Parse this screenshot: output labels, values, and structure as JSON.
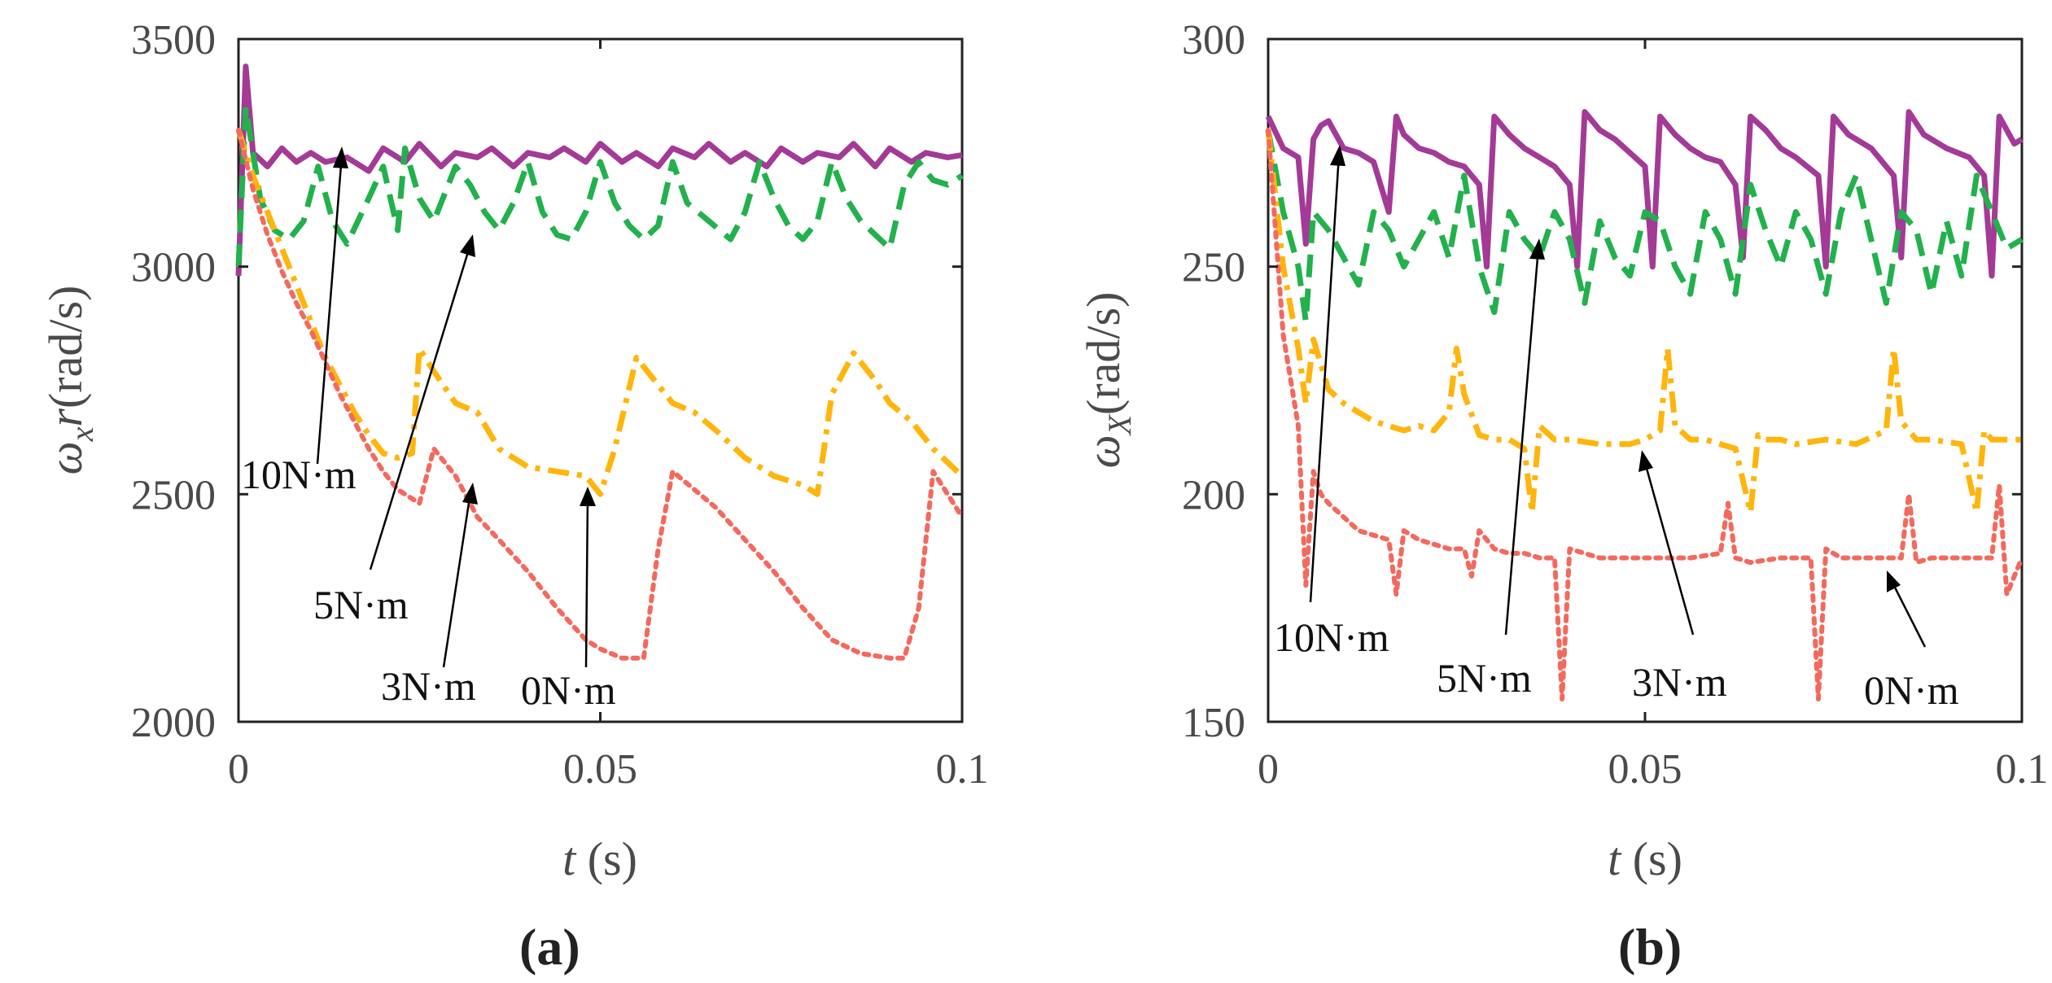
{
  "chart_data": [
    {
      "panel": "(a)",
      "type": "line",
      "title": "",
      "xlabel_var": "t",
      "xlabel_unit": " (s)",
      "ylabel_var": "ω",
      "ylabel_sub": "x",
      "ylabel_var2": "r",
      "ylabel_unit": "(rad/s)",
      "xlim": [
        0,
        0.1
      ],
      "ylim": [
        2000,
        3500
      ],
      "xticks": [
        0,
        0.05,
        0.1
      ],
      "xtick_labels": [
        "0",
        "0.05",
        "0.1"
      ],
      "yticks": [
        2000,
        2500,
        3000,
        3500
      ],
      "ytick_labels": [
        "2000",
        "2500",
        "3000",
        "3500"
      ],
      "grid": false,
      "series": [
        {
          "name": "10N·m",
          "color": "#a33a96",
          "dash": "solid",
          "x": [
            0,
            0.001,
            0.002,
            0.004,
            0.006,
            0.008,
            0.01,
            0.012,
            0.015,
            0.018,
            0.02,
            0.023,
            0.025,
            0.028,
            0.03,
            0.033,
            0.035,
            0.038,
            0.04,
            0.043,
            0.045,
            0.048,
            0.05,
            0.053,
            0.055,
            0.058,
            0.06,
            0.063,
            0.065,
            0.068,
            0.07,
            0.073,
            0.075,
            0.078,
            0.08,
            0.083,
            0.085,
            0.088,
            0.09,
            0.093,
            0.095,
            0.098,
            0.1
          ],
          "y": [
            2980,
            3440,
            3250,
            3220,
            3260,
            3230,
            3250,
            3230,
            3240,
            3210,
            3260,
            3230,
            3270,
            3220,
            3250,
            3240,
            3260,
            3220,
            3250,
            3240,
            3260,
            3230,
            3270,
            3230,
            3250,
            3220,
            3260,
            3240,
            3270,
            3230,
            3250,
            3220,
            3260,
            3230,
            3250,
            3240,
            3270,
            3220,
            3260,
            3230,
            3250,
            3240,
            3245
          ]
        },
        {
          "name": "5N·m",
          "color": "#22b14c",
          "dash": "dashed",
          "x": [
            0,
            0.001,
            0.003,
            0.005,
            0.007,
            0.009,
            0.011,
            0.013,
            0.015,
            0.018,
            0.02,
            0.022,
            0.023,
            0.025,
            0.027,
            0.03,
            0.032,
            0.034,
            0.036,
            0.038,
            0.04,
            0.042,
            0.044,
            0.046,
            0.048,
            0.05,
            0.052,
            0.054,
            0.056,
            0.058,
            0.06,
            0.062,
            0.065,
            0.068,
            0.07,
            0.072,
            0.074,
            0.076,
            0.078,
            0.08,
            0.082,
            0.084,
            0.086,
            0.088,
            0.09,
            0.092,
            0.094,
            0.096,
            0.098,
            0.1
          ],
          "y": [
            3000,
            3350,
            3150,
            3080,
            3060,
            3100,
            3220,
            3100,
            3050,
            3150,
            3220,
            3080,
            3260,
            3150,
            3100,
            3220,
            3180,
            3120,
            3080,
            3140,
            3230,
            3120,
            3070,
            3060,
            3120,
            3230,
            3140,
            3090,
            3060,
            3090,
            3230,
            3140,
            3100,
            3060,
            3120,
            3230,
            3150,
            3090,
            3060,
            3100,
            3230,
            3150,
            3100,
            3070,
            3040,
            3180,
            3230,
            3190,
            3180,
            3200
          ]
        },
        {
          "name": "3N·m",
          "color": "#ffb50c",
          "dash": "dashdot",
          "x": [
            0,
            0.002,
            0.004,
            0.006,
            0.008,
            0.01,
            0.012,
            0.014,
            0.016,
            0.018,
            0.02,
            0.022,
            0.024,
            0.025,
            0.027,
            0.03,
            0.033,
            0.036,
            0.04,
            0.044,
            0.048,
            0.05,
            0.052,
            0.055,
            0.058,
            0.06,
            0.063,
            0.066,
            0.07,
            0.074,
            0.078,
            0.08,
            0.082,
            0.085,
            0.088,
            0.09,
            0.093,
            0.096,
            0.1
          ],
          "y": [
            3300,
            3200,
            3120,
            3040,
            2960,
            2880,
            2800,
            2740,
            2680,
            2630,
            2590,
            2580,
            2590,
            2820,
            2770,
            2700,
            2680,
            2600,
            2560,
            2550,
            2540,
            2500,
            2600,
            2800,
            2740,
            2700,
            2680,
            2640,
            2580,
            2540,
            2520,
            2500,
            2720,
            2810,
            2750,
            2700,
            2660,
            2600,
            2540
          ]
        },
        {
          "name": "0N·m",
          "color": "#f4695d",
          "dash": "dotted",
          "x": [
            0,
            0.002,
            0.004,
            0.006,
            0.008,
            0.01,
            0.012,
            0.014,
            0.016,
            0.018,
            0.02,
            0.022,
            0.024,
            0.025,
            0.027,
            0.03,
            0.033,
            0.036,
            0.04,
            0.044,
            0.048,
            0.05,
            0.053,
            0.056,
            0.058,
            0.06,
            0.063,
            0.066,
            0.07,
            0.074,
            0.078,
            0.082,
            0.086,
            0.09,
            0.092,
            0.094,
            0.096,
            0.098,
            0.1
          ],
          "y": [
            3300,
            3170,
            3070,
            2990,
            2920,
            2860,
            2790,
            2720,
            2660,
            2600,
            2550,
            2510,
            2490,
            2480,
            2600,
            2540,
            2450,
            2400,
            2330,
            2250,
            2180,
            2160,
            2140,
            2140,
            2380,
            2550,
            2510,
            2470,
            2400,
            2330,
            2250,
            2180,
            2150,
            2140,
            2140,
            2250,
            2550,
            2500,
            2450
          ]
        }
      ],
      "annotations": [
        "10N·m",
        "5N·m",
        "3N·m",
        "0N·m"
      ]
    },
    {
      "panel": "(b)",
      "type": "line",
      "title": "",
      "xlabel_var": "t",
      "xlabel_unit": " (s)",
      "ylabel_var": "ω",
      "ylabel_sub": "X",
      "ylabel_var2": "",
      "ylabel_unit": "(rad/s)",
      "xlim": [
        0,
        0.1
      ],
      "ylim": [
        150,
        300
      ],
      "xticks": [
        0,
        0.05,
        0.1
      ],
      "xtick_labels": [
        "0",
        "0.05",
        "0.1"
      ],
      "yticks": [
        150,
        200,
        250,
        300
      ],
      "ytick_labels": [
        "150",
        "200",
        "250",
        "300"
      ],
      "grid": false,
      "series": [
        {
          "name": "10N·m",
          "color": "#a33a96",
          "dash": "solid",
          "x": [
            0,
            0.002,
            0.004,
            0.005,
            0.006,
            0.007,
            0.008,
            0.01,
            0.012,
            0.014,
            0.016,
            0.017,
            0.018,
            0.02,
            0.022,
            0.024,
            0.026,
            0.028,
            0.029,
            0.03,
            0.032,
            0.034,
            0.036,
            0.038,
            0.04,
            0.041,
            0.042,
            0.044,
            0.046,
            0.048,
            0.05,
            0.051,
            0.052,
            0.054,
            0.056,
            0.058,
            0.06,
            0.062,
            0.063,
            0.064,
            0.066,
            0.068,
            0.07,
            0.073,
            0.074,
            0.075,
            0.077,
            0.08,
            0.083,
            0.084,
            0.085,
            0.087,
            0.09,
            0.093,
            0.095,
            0.096,
            0.097,
            0.099,
            0.1
          ],
          "y": [
            283,
            276,
            274,
            255,
            278,
            281,
            282,
            276,
            275,
            273,
            262,
            283,
            279,
            276,
            275,
            273,
            272,
            268,
            250,
            283,
            279,
            276,
            274,
            272,
            268,
            250,
            284,
            280,
            278,
            275,
            272,
            250,
            283,
            279,
            276,
            274,
            273,
            268,
            252,
            283,
            280,
            276,
            274,
            270,
            250,
            283,
            279,
            276,
            270,
            252,
            284,
            279,
            276,
            274,
            270,
            248,
            283,
            277,
            278
          ]
        },
        {
          "name": "5N·m",
          "color": "#22b14c",
          "dash": "dashed",
          "x": [
            0,
            0.002,
            0.004,
            0.005,
            0.006,
            0.008,
            0.01,
            0.012,
            0.014,
            0.016,
            0.018,
            0.02,
            0.022,
            0.024,
            0.026,
            0.028,
            0.03,
            0.032,
            0.034,
            0.036,
            0.038,
            0.04,
            0.042,
            0.044,
            0.046,
            0.048,
            0.05,
            0.052,
            0.054,
            0.056,
            0.058,
            0.06,
            0.062,
            0.064,
            0.066,
            0.068,
            0.07,
            0.072,
            0.074,
            0.076,
            0.078,
            0.08,
            0.082,
            0.084,
            0.086,
            0.088,
            0.09,
            0.092,
            0.094,
            0.096,
            0.098,
            0.1
          ],
          "y": [
            280,
            262,
            250,
            238,
            262,
            258,
            252,
            246,
            262,
            258,
            250,
            256,
            262,
            252,
            270,
            250,
            240,
            262,
            256,
            252,
            262,
            256,
            242,
            260,
            252,
            248,
            262,
            260,
            250,
            244,
            262,
            256,
            244,
            268,
            258,
            250,
            262,
            256,
            244,
            262,
            270,
            256,
            242,
            262,
            258,
            244,
            260,
            248,
            270,
            262,
            254,
            256
          ]
        },
        {
          "name": "3N·m",
          "color": "#ffb50c",
          "dash": "dashdot",
          "x": [
            0,
            0.002,
            0.004,
            0.005,
            0.006,
            0.008,
            0.01,
            0.012,
            0.014,
            0.016,
            0.018,
            0.02,
            0.022,
            0.024,
            0.025,
            0.026,
            0.028,
            0.03,
            0.032,
            0.034,
            0.035,
            0.036,
            0.038,
            0.04,
            0.044,
            0.048,
            0.05,
            0.052,
            0.053,
            0.054,
            0.056,
            0.058,
            0.062,
            0.064,
            0.065,
            0.066,
            0.068,
            0.07,
            0.074,
            0.078,
            0.082,
            0.083,
            0.084,
            0.086,
            0.088,
            0.092,
            0.094,
            0.095,
            0.096,
            0.098,
            0.1
          ],
          "y": [
            280,
            250,
            232,
            220,
            234,
            223,
            220,
            218,
            216,
            215,
            214,
            215,
            214,
            218,
            232,
            222,
            213,
            212,
            212,
            210,
            196,
            215,
            212,
            212,
            211,
            211,
            212,
            214,
            232,
            215,
            212,
            212,
            210,
            196,
            213,
            212,
            212,
            211,
            212,
            211,
            214,
            232,
            216,
            212,
            212,
            211,
            196,
            214,
            212,
            212,
            212
          ]
        },
        {
          "name": "0N·m",
          "color": "#f4695d",
          "dash": "dotted",
          "x": [
            0,
            0.002,
            0.004,
            0.005,
            0.006,
            0.007,
            0.008,
            0.01,
            0.012,
            0.014,
            0.016,
            0.017,
            0.018,
            0.02,
            0.022,
            0.024,
            0.026,
            0.027,
            0.028,
            0.03,
            0.032,
            0.034,
            0.036,
            0.038,
            0.039,
            0.04,
            0.042,
            0.044,
            0.048,
            0.052,
            0.056,
            0.06,
            0.061,
            0.062,
            0.064,
            0.068,
            0.072,
            0.073,
            0.074,
            0.076,
            0.08,
            0.084,
            0.085,
            0.086,
            0.088,
            0.092,
            0.094,
            0.096,
            0.097,
            0.098,
            0.1
          ],
          "y": [
            280,
            235,
            215,
            180,
            205,
            200,
            198,
            195,
            192,
            191,
            190,
            178,
            192,
            190,
            189,
            188,
            188,
            182,
            192,
            188,
            187,
            187,
            186,
            186,
            155,
            188,
            187,
            186,
            186,
            186,
            186,
            187,
            198,
            186,
            185,
            186,
            186,
            155,
            188,
            186,
            186,
            186,
            200,
            185,
            186,
            186,
            186,
            186,
            202,
            178,
            186
          ]
        }
      ],
      "annotations": [
        "10N·m",
        "5N·m",
        "3N·m",
        "0N·m"
      ]
    }
  ]
}
